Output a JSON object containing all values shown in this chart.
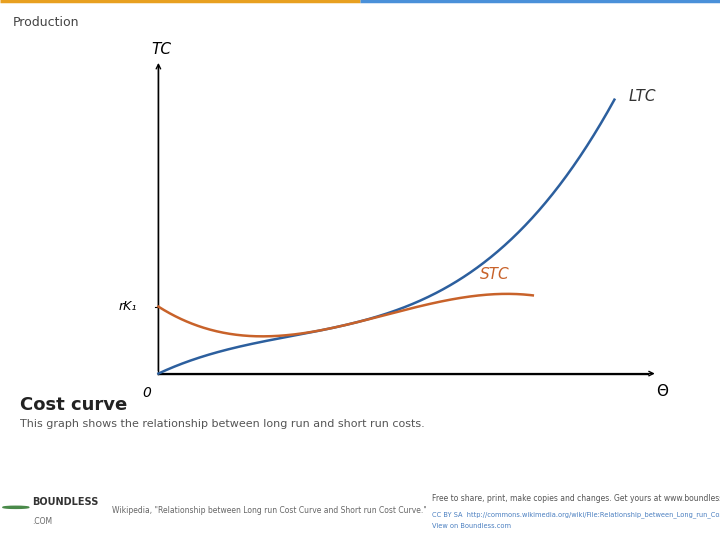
{
  "title": "Production",
  "title_bar_color": "#eeeeee",
  "bg_color": "#ffffff",
  "ltc_color": "#2c5f9e",
  "stc_color": "#c8622a",
  "ltc_label": "LTC",
  "stc_label": "STC",
  "y_axis_label": "TC",
  "x_axis_label": "Θ",
  "origin_label": "0",
  "rk_label": "rK₁",
  "heading": "Cost curve",
  "subheading": "This graph shows the relationship between long run and short run costs.",
  "footer_bg": "#e8e8e8",
  "footer_boundless": "BOUNDLESS",
  "footer_com": ".COM",
  "footer_wiki": "Wikipedia, \"Relationship between Long run Cost Curve and Short run Cost Curve.\"",
  "footer_free": "Free to share, print, make copies and changes. Get yours at www.boundless.com",
  "footer_cc": "CC BY SA",
  "footer_url": "http://commons.wikimedia.org/wiki/File:Relationship_between_Long_run_Cost_Curve_and_Short_run_Cost_Curve.svg",
  "footer_view": "View on Boundless.com",
  "accent_left_color": "#e8a020",
  "accent_right_color": "#4a90d9"
}
